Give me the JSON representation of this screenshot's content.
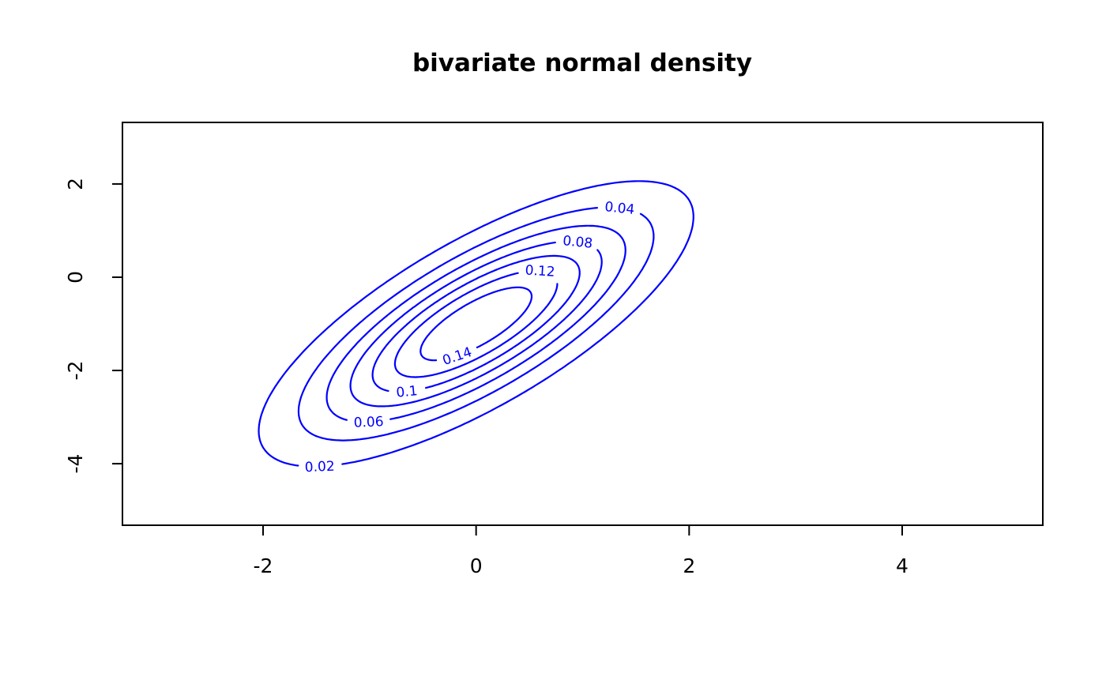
{
  "chart_data": {
    "type": "contour",
    "title": "bivariate normal density",
    "xlabel": "",
    "ylabel": "",
    "xlim": [
      -3.32,
      5.32
    ],
    "ylim": [
      -5.32,
      3.32
    ],
    "x_ticks": [
      -2,
      0,
      2,
      4
    ],
    "y_ticks": [
      2,
      0,
      -2,
      -4
    ],
    "grid": false,
    "legend": false,
    "background_color": "#FFFFFF",
    "axis_color": "#000000",
    "line_color": "#0000FF",
    "distribution": {
      "name": "bivariate normal",
      "mean": [
        0,
        -1
      ],
      "sigma_x": 1,
      "sigma_y": 1.5,
      "rho": 0.75
    },
    "levels": [
      0.02,
      0.04,
      0.06,
      0.08,
      0.1,
      0.12,
      0.14
    ],
    "level_labels": [
      "0.02",
      "0.04",
      "0.06",
      "0.08",
      "0.1",
      "0.12",
      "0.14"
    ],
    "label_theta_deg": [
      224,
      36,
      224,
      36,
      228,
      38,
      250
    ]
  }
}
